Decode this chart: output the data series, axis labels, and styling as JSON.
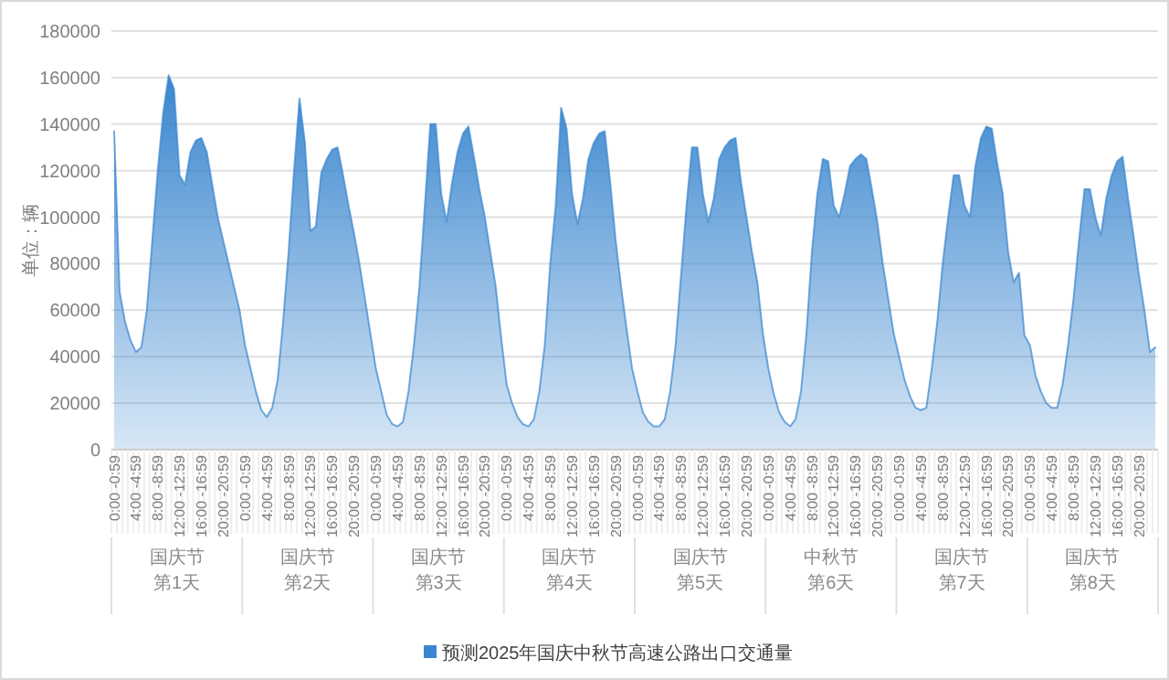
{
  "chart_data": {
    "type": "area",
    "ylabel": "单位：辆",
    "legend": "bottom",
    "grid": "y",
    "ylim": [
      0,
      180000
    ],
    "yticks": [
      0,
      20000,
      40000,
      60000,
      80000,
      100000,
      120000,
      140000,
      160000,
      180000
    ],
    "categories": [
      "0:00 -0:59",
      null,
      null,
      null,
      "4:00 -4:59",
      null,
      null,
      null,
      "8:00 -8:59",
      null,
      null,
      null,
      "12:00 -12:59",
      null,
      null,
      null,
      "16:00 -16:59",
      null,
      null,
      null,
      "20:00 -20:59",
      null,
      null,
      null,
      "0:00 -0:59",
      null,
      null,
      null,
      "4:00 -4:59",
      null,
      null,
      null,
      "8:00 -8:59",
      null,
      null,
      null,
      "12:00 -12:59",
      null,
      null,
      null,
      "16:00 -16:59",
      null,
      null,
      null,
      "20:00 -20:59",
      null,
      null,
      null,
      "0:00 -0:59",
      null,
      null,
      null,
      "4:00 -4:59",
      null,
      null,
      null,
      "8:00 -8:59",
      null,
      null,
      null,
      "12:00 -12:59",
      null,
      null,
      null,
      "16:00 -16:59",
      null,
      null,
      null,
      "20:00 -20:59",
      null,
      null,
      null,
      "0:00 -0:59",
      null,
      null,
      null,
      "4:00 -4:59",
      null,
      null,
      null,
      "8:00 -8:59",
      null,
      null,
      null,
      "12:00 -12:59",
      null,
      null,
      null,
      "16:00 -16:59",
      null,
      null,
      null,
      "20:00 -20:59",
      null,
      null,
      null,
      "0:00 -0:59",
      null,
      null,
      null,
      "4:00 -4:59",
      null,
      null,
      null,
      "8:00 -8:59",
      null,
      null,
      null,
      "12:00 -12:59",
      null,
      null,
      null,
      "16:00 -16:59",
      null,
      null,
      null,
      "20:00 -20:59",
      null,
      null,
      null,
      "0:00 -0:59",
      null,
      null,
      null,
      "4:00 -4:59",
      null,
      null,
      null,
      "8:00 -8:59",
      null,
      null,
      null,
      "12:00 -12:59",
      null,
      null,
      null,
      "16:00 -16:59",
      null,
      null,
      null,
      "20:00 -20:59",
      null,
      null,
      null,
      "0:00 -0:59",
      null,
      null,
      null,
      "4:00 -4:59",
      null,
      null,
      null,
      "8:00 -8:59",
      null,
      null,
      null,
      "12:00 -12:59",
      null,
      null,
      null,
      "16:00 -16:59",
      null,
      null,
      null,
      "20:00 -20:59",
      null,
      null,
      null,
      "0:00 -0:59",
      null,
      null,
      null,
      "4:00 -4:59",
      null,
      null,
      null,
      "8:00 -8:59",
      null,
      null,
      null,
      "12:00 -12:59",
      null,
      null,
      null,
      "16:00 -16:59",
      null,
      null,
      null,
      "20:00 -20:59",
      null,
      null,
      null
    ],
    "annotations": [
      "国庆节",
      "第1天",
      "国庆节",
      "第2天",
      "国庆节",
      "第3天",
      "国庆节",
      "第4天",
      "国庆节",
      "第5天",
      "中秋节",
      "第6天",
      "国庆节",
      "第7天",
      "国庆节",
      "第8天"
    ],
    "series": [
      {
        "name": "预测2025年国庆中秋节高速公路出口交通量",
        "color": "#3a86cf",
        "values": [
          137000,
          68000,
          55000,
          47000,
          42000,
          44000,
          60000,
          90000,
          120000,
          145000,
          161000,
          155000,
          118000,
          114000,
          128000,
          133000,
          134000,
          128000,
          114000,
          100000,
          90000,
          80000,
          70000,
          60000,
          45000,
          35000,
          25000,
          17000,
          14000,
          18000,
          30000,
          55000,
          85000,
          120000,
          151000,
          132000,
          94000,
          96000,
          119000,
          125000,
          129000,
          130000,
          118000,
          105000,
          93000,
          80000,
          65000,
          50000,
          35000,
          25000,
          15000,
          11000,
          10000,
          12000,
          25000,
          45000,
          70000,
          105000,
          140000,
          140000,
          110000,
          98000,
          115000,
          128000,
          136000,
          139000,
          126000,
          112000,
          100000,
          85000,
          70000,
          48000,
          28000,
          20000,
          14000,
          11000,
          10000,
          13000,
          25000,
          45000,
          80000,
          105000,
          147000,
          138000,
          110000,
          97000,
          108000,
          125000,
          132000,
          136000,
          137000,
          115000,
          90000,
          70000,
          52000,
          35000,
          25000,
          16000,
          12000,
          10000,
          10000,
          13000,
          25000,
          45000,
          75000,
          105000,
          130000,
          130000,
          110000,
          98000,
          108000,
          125000,
          130000,
          133000,
          134000,
          115000,
          100000,
          85000,
          72000,
          50000,
          35000,
          24000,
          16000,
          12000,
          10000,
          13000,
          25000,
          50000,
          85000,
          110000,
          125000,
          124000,
          105000,
          100000,
          110000,
          122000,
          125000,
          127000,
          125000,
          112000,
          98000,
          80000,
          65000,
          50000,
          40000,
          30000,
          23000,
          18000,
          17000,
          18000,
          35000,
          55000,
          80000,
          100000,
          118000,
          118000,
          105000,
          100000,
          122000,
          134000,
          139000,
          138000,
          123000,
          110000,
          85000,
          72000,
          76000,
          49000,
          45000,
          32000,
          25000,
          20000,
          18000,
          18000,
          28000,
          45000,
          65000,
          90000,
          112000,
          112000,
          100000,
          92000,
          108000,
          118000,
          124000,
          126000,
          108000,
          92000,
          75000,
          60000,
          42000,
          44000
        ]
      }
    ]
  }
}
